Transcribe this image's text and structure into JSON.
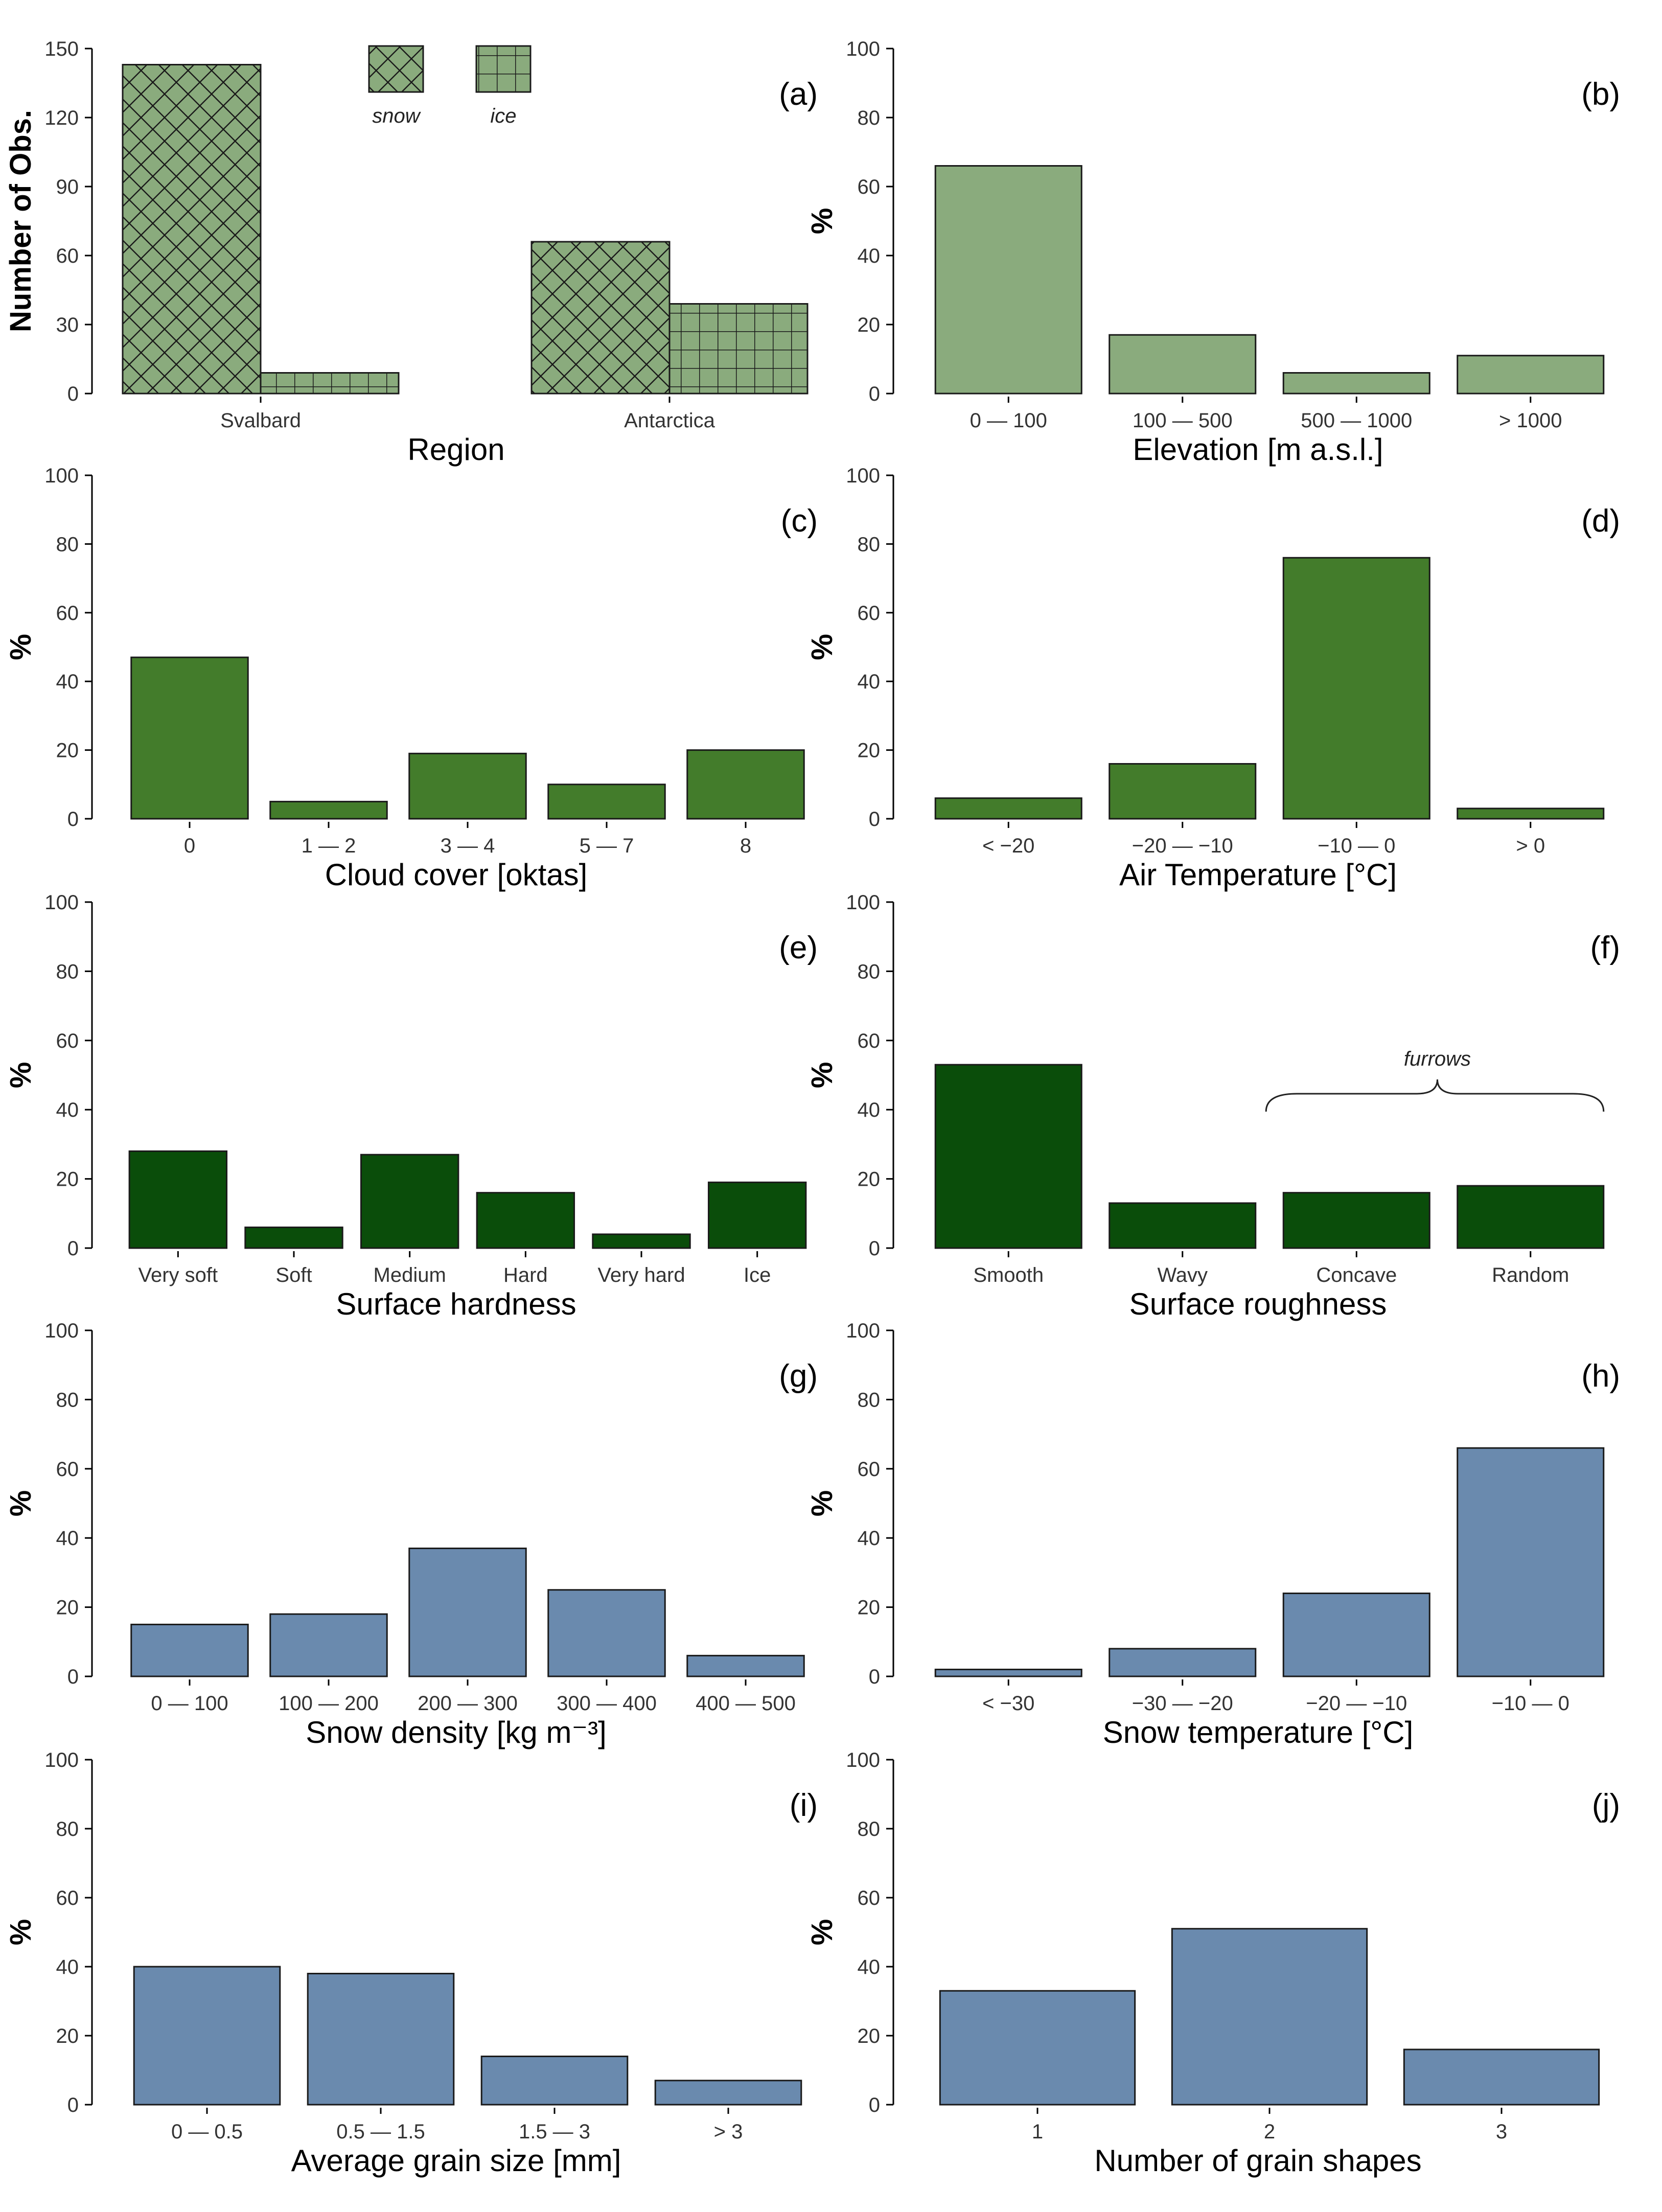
{
  "colors": {
    "region": "#8aab7d",
    "elevation": "#8aab7d",
    "cloud": "#437c2b",
    "airtemp": "#437c2b",
    "hardness": "#0a4d0a",
    "roughness": "#0a4d0a",
    "density": "#6a8aae",
    "snowtemp": "#6a8aae",
    "grainsize": "#6a8aae",
    "grainshapes": "#6a8aae"
  },
  "chart_data": [
    {
      "id": "a",
      "tag": "(a)",
      "type": "bar",
      "title": "",
      "xlabel": "Region",
      "ylabel": "Number of Obs.",
      "ylim": [
        0,
        150
      ],
      "yticks": [
        0,
        30,
        60,
        90,
        120,
        150
      ],
      "categories": [
        "Svalbard",
        "Antarctica"
      ],
      "series": [
        {
          "name": "snow",
          "values": [
            143,
            66
          ]
        },
        {
          "name": "ice",
          "values": [
            9,
            39
          ]
        }
      ],
      "legend": [
        "snow",
        "ice"
      ]
    },
    {
      "id": "b",
      "tag": "(b)",
      "type": "bar",
      "xlabel": "Elevation [m a.s.l.]",
      "ylabel": "%",
      "ylim": [
        0,
        100
      ],
      "yticks": [
        0,
        20,
        40,
        60,
        80,
        100
      ],
      "categories": [
        "0 — 100",
        "100 — 500",
        "500 — 1000",
        "> 1000"
      ],
      "values": [
        66,
        17,
        6,
        11
      ]
    },
    {
      "id": "c",
      "tag": "(c)",
      "type": "bar",
      "xlabel": "Cloud cover [oktas]",
      "ylabel": "%",
      "ylim": [
        0,
        100
      ],
      "yticks": [
        0,
        20,
        40,
        60,
        80,
        100
      ],
      "categories": [
        "0",
        "1 — 2",
        "3 — 4",
        "5 — 7",
        "8"
      ],
      "values": [
        47,
        5,
        19,
        10,
        20
      ]
    },
    {
      "id": "d",
      "tag": "(d)",
      "type": "bar",
      "xlabel": "Air Temperature [°C]",
      "ylabel": "%",
      "ylim": [
        0,
        100
      ],
      "yticks": [
        0,
        20,
        40,
        60,
        80,
        100
      ],
      "categories": [
        "< −20",
        "−20 — −10",
        "−10 — 0",
        "> 0"
      ],
      "values": [
        6,
        16,
        76,
        3
      ]
    },
    {
      "id": "e",
      "tag": "(e)",
      "type": "bar",
      "xlabel": "Surface hardness",
      "ylabel": "%",
      "ylim": [
        0,
        100
      ],
      "yticks": [
        0,
        20,
        40,
        60,
        80,
        100
      ],
      "categories": [
        "Very soft",
        "Soft",
        "Medium",
        "Hard",
        "Very hard",
        "Ice"
      ],
      "values": [
        28,
        6,
        27,
        16,
        4,
        19
      ]
    },
    {
      "id": "f",
      "tag": "(f)",
      "type": "bar",
      "xlabel": "Surface roughness",
      "ylabel": "%",
      "ylim": [
        0,
        100
      ],
      "yticks": [
        0,
        20,
        40,
        60,
        80,
        100
      ],
      "categories": [
        "Smooth",
        "Wavy",
        "Concave",
        "Random"
      ],
      "values": [
        53,
        13,
        16,
        18
      ],
      "annotation": "furrows"
    },
    {
      "id": "g",
      "tag": "(g)",
      "type": "bar",
      "xlabel": "Snow density [kg m⁻³]",
      "ylabel": "%",
      "ylim": [
        0,
        100
      ],
      "yticks": [
        0,
        20,
        40,
        60,
        80,
        100
      ],
      "categories": [
        "0 — 100",
        "100 — 200",
        "200 — 300",
        "300 — 400",
        "400 — 500"
      ],
      "values": [
        15,
        18,
        37,
        25,
        6
      ]
    },
    {
      "id": "h",
      "tag": "(h)",
      "type": "bar",
      "xlabel": "Snow temperature [°C]",
      "ylabel": "%",
      "ylim": [
        0,
        100
      ],
      "yticks": [
        0,
        20,
        40,
        60,
        80,
        100
      ],
      "categories": [
        "< −30",
        "−30 — −20",
        "−20 — −10",
        "−10 — 0"
      ],
      "values": [
        2,
        8,
        24,
        66
      ]
    },
    {
      "id": "i",
      "tag": "(i)",
      "type": "bar",
      "xlabel": "Average grain size [mm]",
      "ylabel": "%",
      "ylim": [
        0,
        100
      ],
      "yticks": [
        0,
        20,
        40,
        60,
        80,
        100
      ],
      "categories": [
        "0 — 0.5",
        "0.5 — 1.5",
        "1.5 — 3",
        "> 3"
      ],
      "values": [
        40,
        38,
        14,
        7
      ]
    },
    {
      "id": "j",
      "tag": "(j)",
      "type": "bar",
      "xlabel": "Number of grain shapes",
      "ylabel": "%",
      "ylim": [
        0,
        100
      ],
      "yticks": [
        0,
        20,
        40,
        60,
        80,
        100
      ],
      "categories": [
        "1",
        "2",
        "3"
      ],
      "values": [
        33,
        51,
        16
      ]
    }
  ]
}
